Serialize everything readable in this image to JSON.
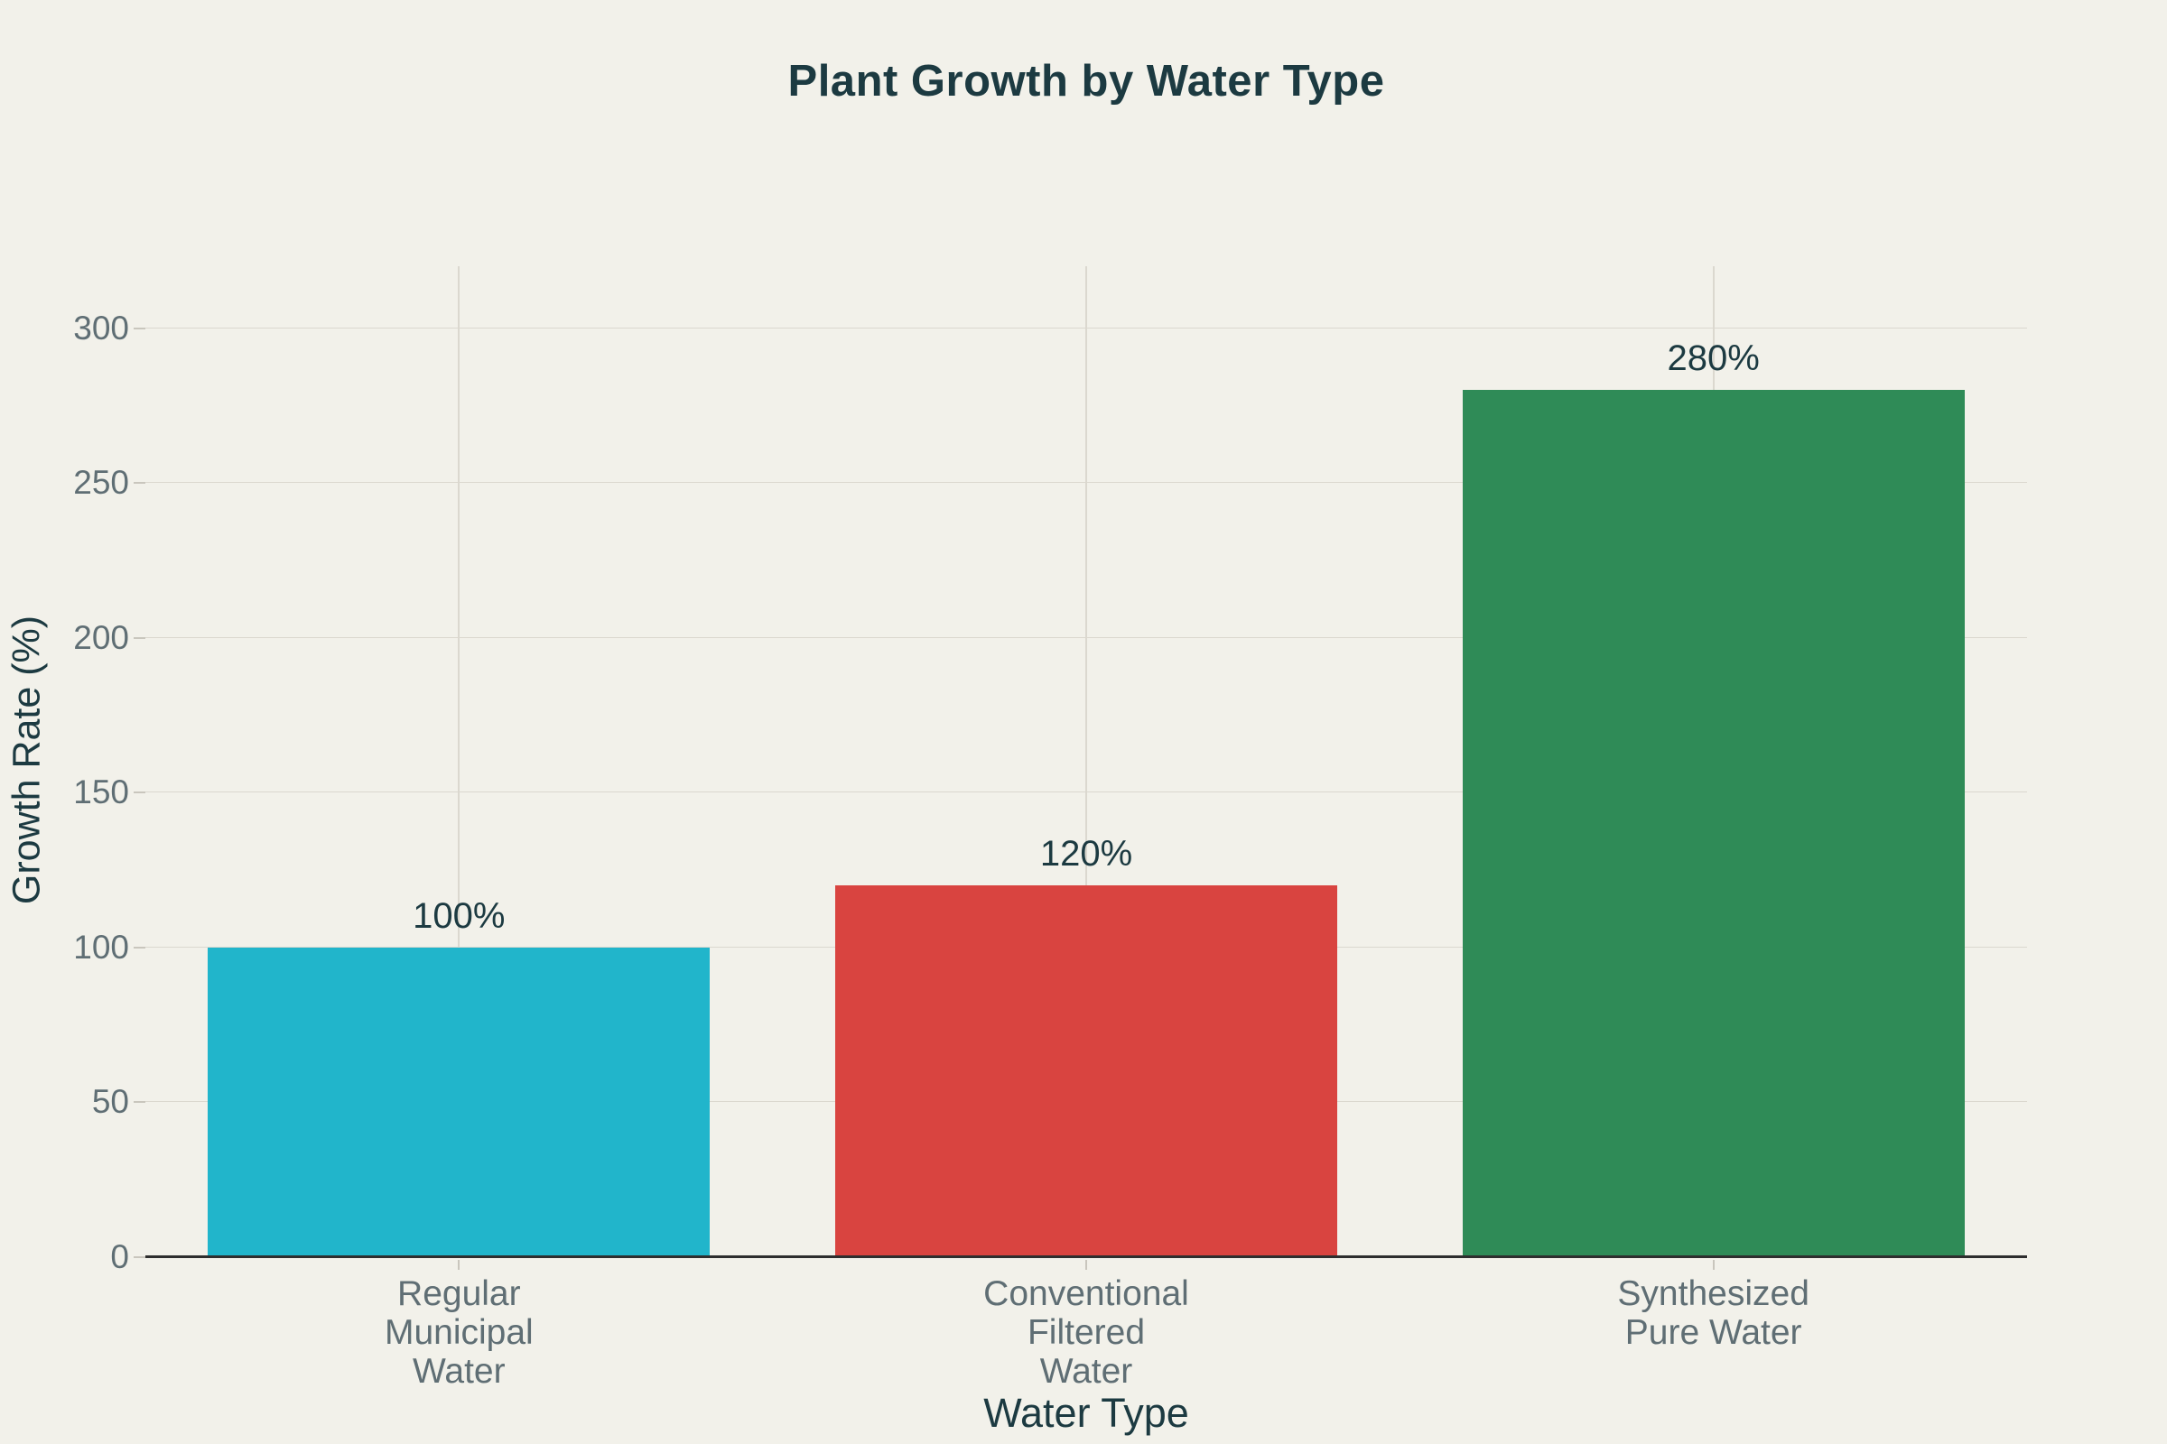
{
  "title": "Plant Growth by Water Type",
  "colors": {
    "background": "#f2f1ea",
    "dark_text": "#1c3a41",
    "tick_text": "#5f6e74",
    "gridline": "#dbd8cf",
    "axis_line": "#2e2e2e",
    "tick_mark": "#c9c6bd"
  },
  "chart_data": {
    "type": "bar",
    "title": "Plant Growth by Water Type",
    "xlabel": "Water Type",
    "ylabel": "Growth Rate (%)",
    "categories": [
      [
        "Regular",
        "Municipal",
        "Water"
      ],
      [
        "Conventional",
        "Filtered",
        "Water"
      ],
      [
        "Synthesized",
        "Pure Water"
      ]
    ],
    "values": [
      100,
      120,
      280
    ],
    "bar_labels": [
      "100%",
      "120%",
      "280%"
    ],
    "bar_colors": [
      "#21b5cb",
      "#d94440",
      "#2f8b57"
    ],
    "yticks": [
      0,
      50,
      100,
      150,
      200,
      250,
      300
    ],
    "ylim": [
      0,
      320
    ],
    "grid": true,
    "legend": false,
    "bar_width_fraction": 0.8
  }
}
